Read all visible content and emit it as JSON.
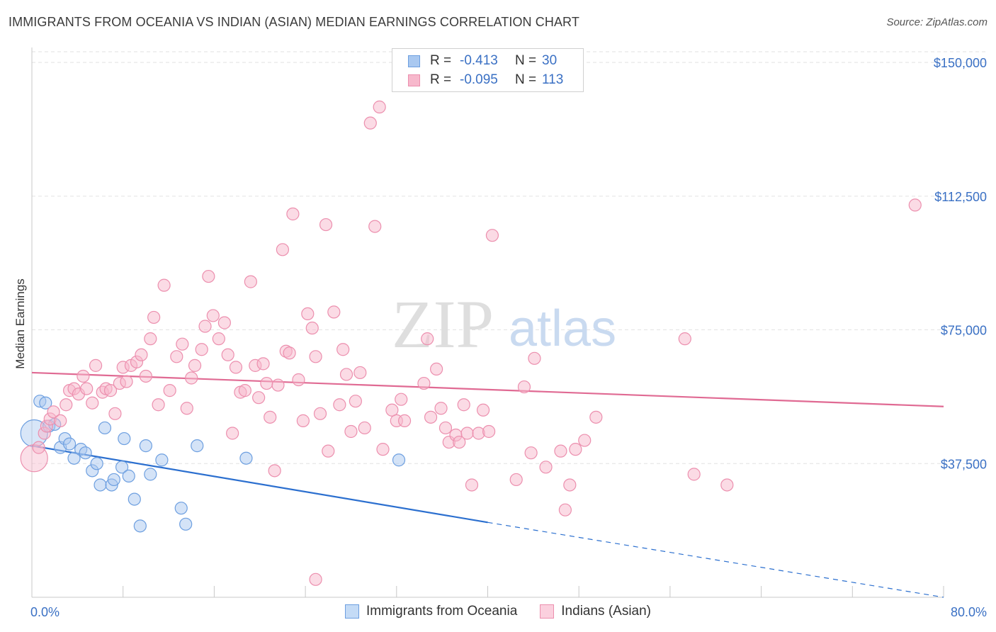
{
  "header": {
    "title": "IMMIGRANTS FROM OCEANIA VS INDIAN (ASIAN) MEDIAN EARNINGS CORRELATION CHART",
    "source": "Source: ZipAtlas.com"
  },
  "watermark": {
    "zip": "ZIP",
    "atlas": "atlas"
  },
  "legend": {
    "rows": [
      {
        "r_label": "R =",
        "r_value": "-0.413",
        "n_label": "N =",
        "n_value": "30",
        "color": "#a9c8f0",
        "border": "#6d9fe0"
      },
      {
        "r_label": "R =",
        "r_value": "-0.095",
        "n_label": "N =",
        "n_value": "113",
        "color": "#f7b8cc",
        "border": "#ec8fae"
      }
    ]
  },
  "bottom_legend": [
    {
      "label": "Immigrants from Oceania",
      "color": "#a9c8f0",
      "border": "#6d9fe0"
    },
    {
      "label": "Indians (Asian)",
      "color": "#f7b8cc",
      "border": "#ec8fae"
    }
  ],
  "chart_data": {
    "type": "scatter",
    "xlabel": "",
    "ylabel": "Median Earnings",
    "xlim": [
      0,
      80
    ],
    "ylim": [
      0,
      153000
    ],
    "x_tick_labels": [
      "0.0%",
      "80.0%"
    ],
    "y_ticks": [
      37500,
      75000,
      112500,
      150000
    ],
    "y_tick_labels": [
      "$37,500",
      "$75,000",
      "$112,500",
      "$150,000"
    ],
    "grid": true,
    "colors": {
      "oceania_line": "#2b6fcf",
      "indian_line": "#e06a93",
      "tick_label": "#3a70c4"
    },
    "series": [
      {
        "name": "Immigrants from Oceania",
        "fill": "#a9c8f0",
        "stroke": "#6d9fe0",
        "trend": {
          "x": [
            0,
            40
          ],
          "y": [
            42500,
            21000
          ],
          "dashed_to": [
            80,
            0
          ]
        },
        "points": [
          {
            "x": 0.2,
            "y": 46000,
            "big": true
          },
          {
            "x": 0.7,
            "y": 55000
          },
          {
            "x": 1.2,
            "y": 54500
          },
          {
            "x": 1.5,
            "y": 48000
          },
          {
            "x": 2.0,
            "y": 48500
          },
          {
            "x": 2.5,
            "y": 42000
          },
          {
            "x": 2.9,
            "y": 44500
          },
          {
            "x": 3.3,
            "y": 43000
          },
          {
            "x": 3.7,
            "y": 39000
          },
          {
            "x": 4.3,
            "y": 41500
          },
          {
            "x": 4.7,
            "y": 40500
          },
          {
            "x": 5.3,
            "y": 35500
          },
          {
            "x": 5.7,
            "y": 37500
          },
          {
            "x": 6.0,
            "y": 31500
          },
          {
            "x": 6.4,
            "y": 47500
          },
          {
            "x": 7.0,
            "y": 31500
          },
          {
            "x": 7.2,
            "y": 33000
          },
          {
            "x": 7.9,
            "y": 36500
          },
          {
            "x": 8.1,
            "y": 44500
          },
          {
            "x": 8.5,
            "y": 34000
          },
          {
            "x": 9.0,
            "y": 27500
          },
          {
            "x": 9.5,
            "y": 20000
          },
          {
            "x": 10.0,
            "y": 42500
          },
          {
            "x": 10.4,
            "y": 34500
          },
          {
            "x": 11.4,
            "y": 38500
          },
          {
            "x": 13.1,
            "y": 25000
          },
          {
            "x": 13.5,
            "y": 20500
          },
          {
            "x": 14.5,
            "y": 42500
          },
          {
            "x": 18.8,
            "y": 39000
          },
          {
            "x": 32.2,
            "y": 38500
          }
        ]
      },
      {
        "name": "Indians (Asian)",
        "fill": "#f7b8cc",
        "stroke": "#ec8fae",
        "trend": {
          "x": [
            0,
            80
          ],
          "y": [
            63000,
            53500
          ]
        },
        "points": [
          {
            "x": 0.2,
            "y": 39000,
            "big": true
          },
          {
            "x": 0.6,
            "y": 42000
          },
          {
            "x": 1.1,
            "y": 46000
          },
          {
            "x": 1.3,
            "y": 48000
          },
          {
            "x": 1.6,
            "y": 50000
          },
          {
            "x": 1.9,
            "y": 52000
          },
          {
            "x": 2.5,
            "y": 49500
          },
          {
            "x": 3.0,
            "y": 54000
          },
          {
            "x": 3.3,
            "y": 58000
          },
          {
            "x": 3.7,
            "y": 58500
          },
          {
            "x": 4.1,
            "y": 57000
          },
          {
            "x": 4.5,
            "y": 62000
          },
          {
            "x": 4.8,
            "y": 58500
          },
          {
            "x": 5.3,
            "y": 54500
          },
          {
            "x": 5.6,
            "y": 65000
          },
          {
            "x": 6.2,
            "y": 57500
          },
          {
            "x": 6.5,
            "y": 58500
          },
          {
            "x": 6.9,
            "y": 58000
          },
          {
            "x": 7.3,
            "y": 51500
          },
          {
            "x": 7.7,
            "y": 60000
          },
          {
            "x": 8.0,
            "y": 64500
          },
          {
            "x": 8.3,
            "y": 60500
          },
          {
            "x": 8.7,
            "y": 65000
          },
          {
            "x": 9.2,
            "y": 66000
          },
          {
            "x": 9.6,
            "y": 68000
          },
          {
            "x": 10.0,
            "y": 62000
          },
          {
            "x": 10.4,
            "y": 72500
          },
          {
            "x": 10.7,
            "y": 78500
          },
          {
            "x": 11.1,
            "y": 54000
          },
          {
            "x": 11.6,
            "y": 87500
          },
          {
            "x": 12.1,
            "y": 58000
          },
          {
            "x": 12.7,
            "y": 67500
          },
          {
            "x": 13.2,
            "y": 71000
          },
          {
            "x": 13.6,
            "y": 53000
          },
          {
            "x": 14.0,
            "y": 61500
          },
          {
            "x": 14.3,
            "y": 65000
          },
          {
            "x": 14.9,
            "y": 69500
          },
          {
            "x": 15.2,
            "y": 76000
          },
          {
            "x": 15.5,
            "y": 90000
          },
          {
            "x": 15.9,
            "y": 79000
          },
          {
            "x": 16.4,
            "y": 72500
          },
          {
            "x": 16.9,
            "y": 77000
          },
          {
            "x": 17.2,
            "y": 68000
          },
          {
            "x": 17.6,
            "y": 46000
          },
          {
            "x": 17.9,
            "y": 64500
          },
          {
            "x": 18.3,
            "y": 57500
          },
          {
            "x": 18.7,
            "y": 58000
          },
          {
            "x": 19.2,
            "y": 88500
          },
          {
            "x": 19.6,
            "y": 65000
          },
          {
            "x": 19.9,
            "y": 56000
          },
          {
            "x": 20.3,
            "y": 65500
          },
          {
            "x": 20.6,
            "y": 60000
          },
          {
            "x": 20.9,
            "y": 50500
          },
          {
            "x": 21.3,
            "y": 35500
          },
          {
            "x": 21.6,
            "y": 59500
          },
          {
            "x": 22.0,
            "y": 97500
          },
          {
            "x": 22.3,
            "y": 69000
          },
          {
            "x": 22.6,
            "y": 68500
          },
          {
            "x": 22.9,
            "y": 107500
          },
          {
            "x": 23.4,
            "y": 61000
          },
          {
            "x": 23.8,
            "y": 49500
          },
          {
            "x": 24.2,
            "y": 79500
          },
          {
            "x": 24.6,
            "y": 75500
          },
          {
            "x": 24.9,
            "y": 67500
          },
          {
            "x": 25.3,
            "y": 51500
          },
          {
            "x": 25.8,
            "y": 104500
          },
          {
            "x": 26.0,
            "y": 41000
          },
          {
            "x": 26.5,
            "y": 80000
          },
          {
            "x": 27.0,
            "y": 54000
          },
          {
            "x": 27.3,
            "y": 69500
          },
          {
            "x": 27.6,
            "y": 62500
          },
          {
            "x": 28.0,
            "y": 46500
          },
          {
            "x": 28.4,
            "y": 55000
          },
          {
            "x": 28.8,
            "y": 63000
          },
          {
            "x": 29.2,
            "y": 47500
          },
          {
            "x": 29.7,
            "y": 133000
          },
          {
            "x": 30.1,
            "y": 104000
          },
          {
            "x": 30.5,
            "y": 137500
          },
          {
            "x": 30.8,
            "y": 41500
          },
          {
            "x": 31.6,
            "y": 52500
          },
          {
            "x": 32.0,
            "y": 49500
          },
          {
            "x": 32.4,
            "y": 55500
          },
          {
            "x": 32.7,
            "y": 49500
          },
          {
            "x": 34.4,
            "y": 60000
          },
          {
            "x": 34.7,
            "y": 72500
          },
          {
            "x": 35.0,
            "y": 50500
          },
          {
            "x": 35.5,
            "y": 64000
          },
          {
            "x": 35.9,
            "y": 53000
          },
          {
            "x": 36.3,
            "y": 47500
          },
          {
            "x": 36.6,
            "y": 43500
          },
          {
            "x": 37.2,
            "y": 45500
          },
          {
            "x": 37.5,
            "y": 43500
          },
          {
            "x": 37.9,
            "y": 54000
          },
          {
            "x": 38.2,
            "y": 46000
          },
          {
            "x": 38.6,
            "y": 31500
          },
          {
            "x": 39.2,
            "y": 46000
          },
          {
            "x": 39.6,
            "y": 52500
          },
          {
            "x": 40.1,
            "y": 46500
          },
          {
            "x": 40.4,
            "y": 101500
          },
          {
            "x": 42.5,
            "y": 33000
          },
          {
            "x": 43.2,
            "y": 59000
          },
          {
            "x": 43.8,
            "y": 40500
          },
          {
            "x": 44.1,
            "y": 67000
          },
          {
            "x": 45.1,
            "y": 36500
          },
          {
            "x": 46.4,
            "y": 41000
          },
          {
            "x": 46.8,
            "y": 24500
          },
          {
            "x": 47.2,
            "y": 31500
          },
          {
            "x": 47.7,
            "y": 41500
          },
          {
            "x": 48.5,
            "y": 44000
          },
          {
            "x": 49.5,
            "y": 50500
          },
          {
            "x": 24.9,
            "y": 5000
          },
          {
            "x": 57.3,
            "y": 72500
          },
          {
            "x": 58.1,
            "y": 34500
          },
          {
            "x": 61.0,
            "y": 31500
          },
          {
            "x": 77.5,
            "y": 110000
          }
        ]
      }
    ]
  }
}
